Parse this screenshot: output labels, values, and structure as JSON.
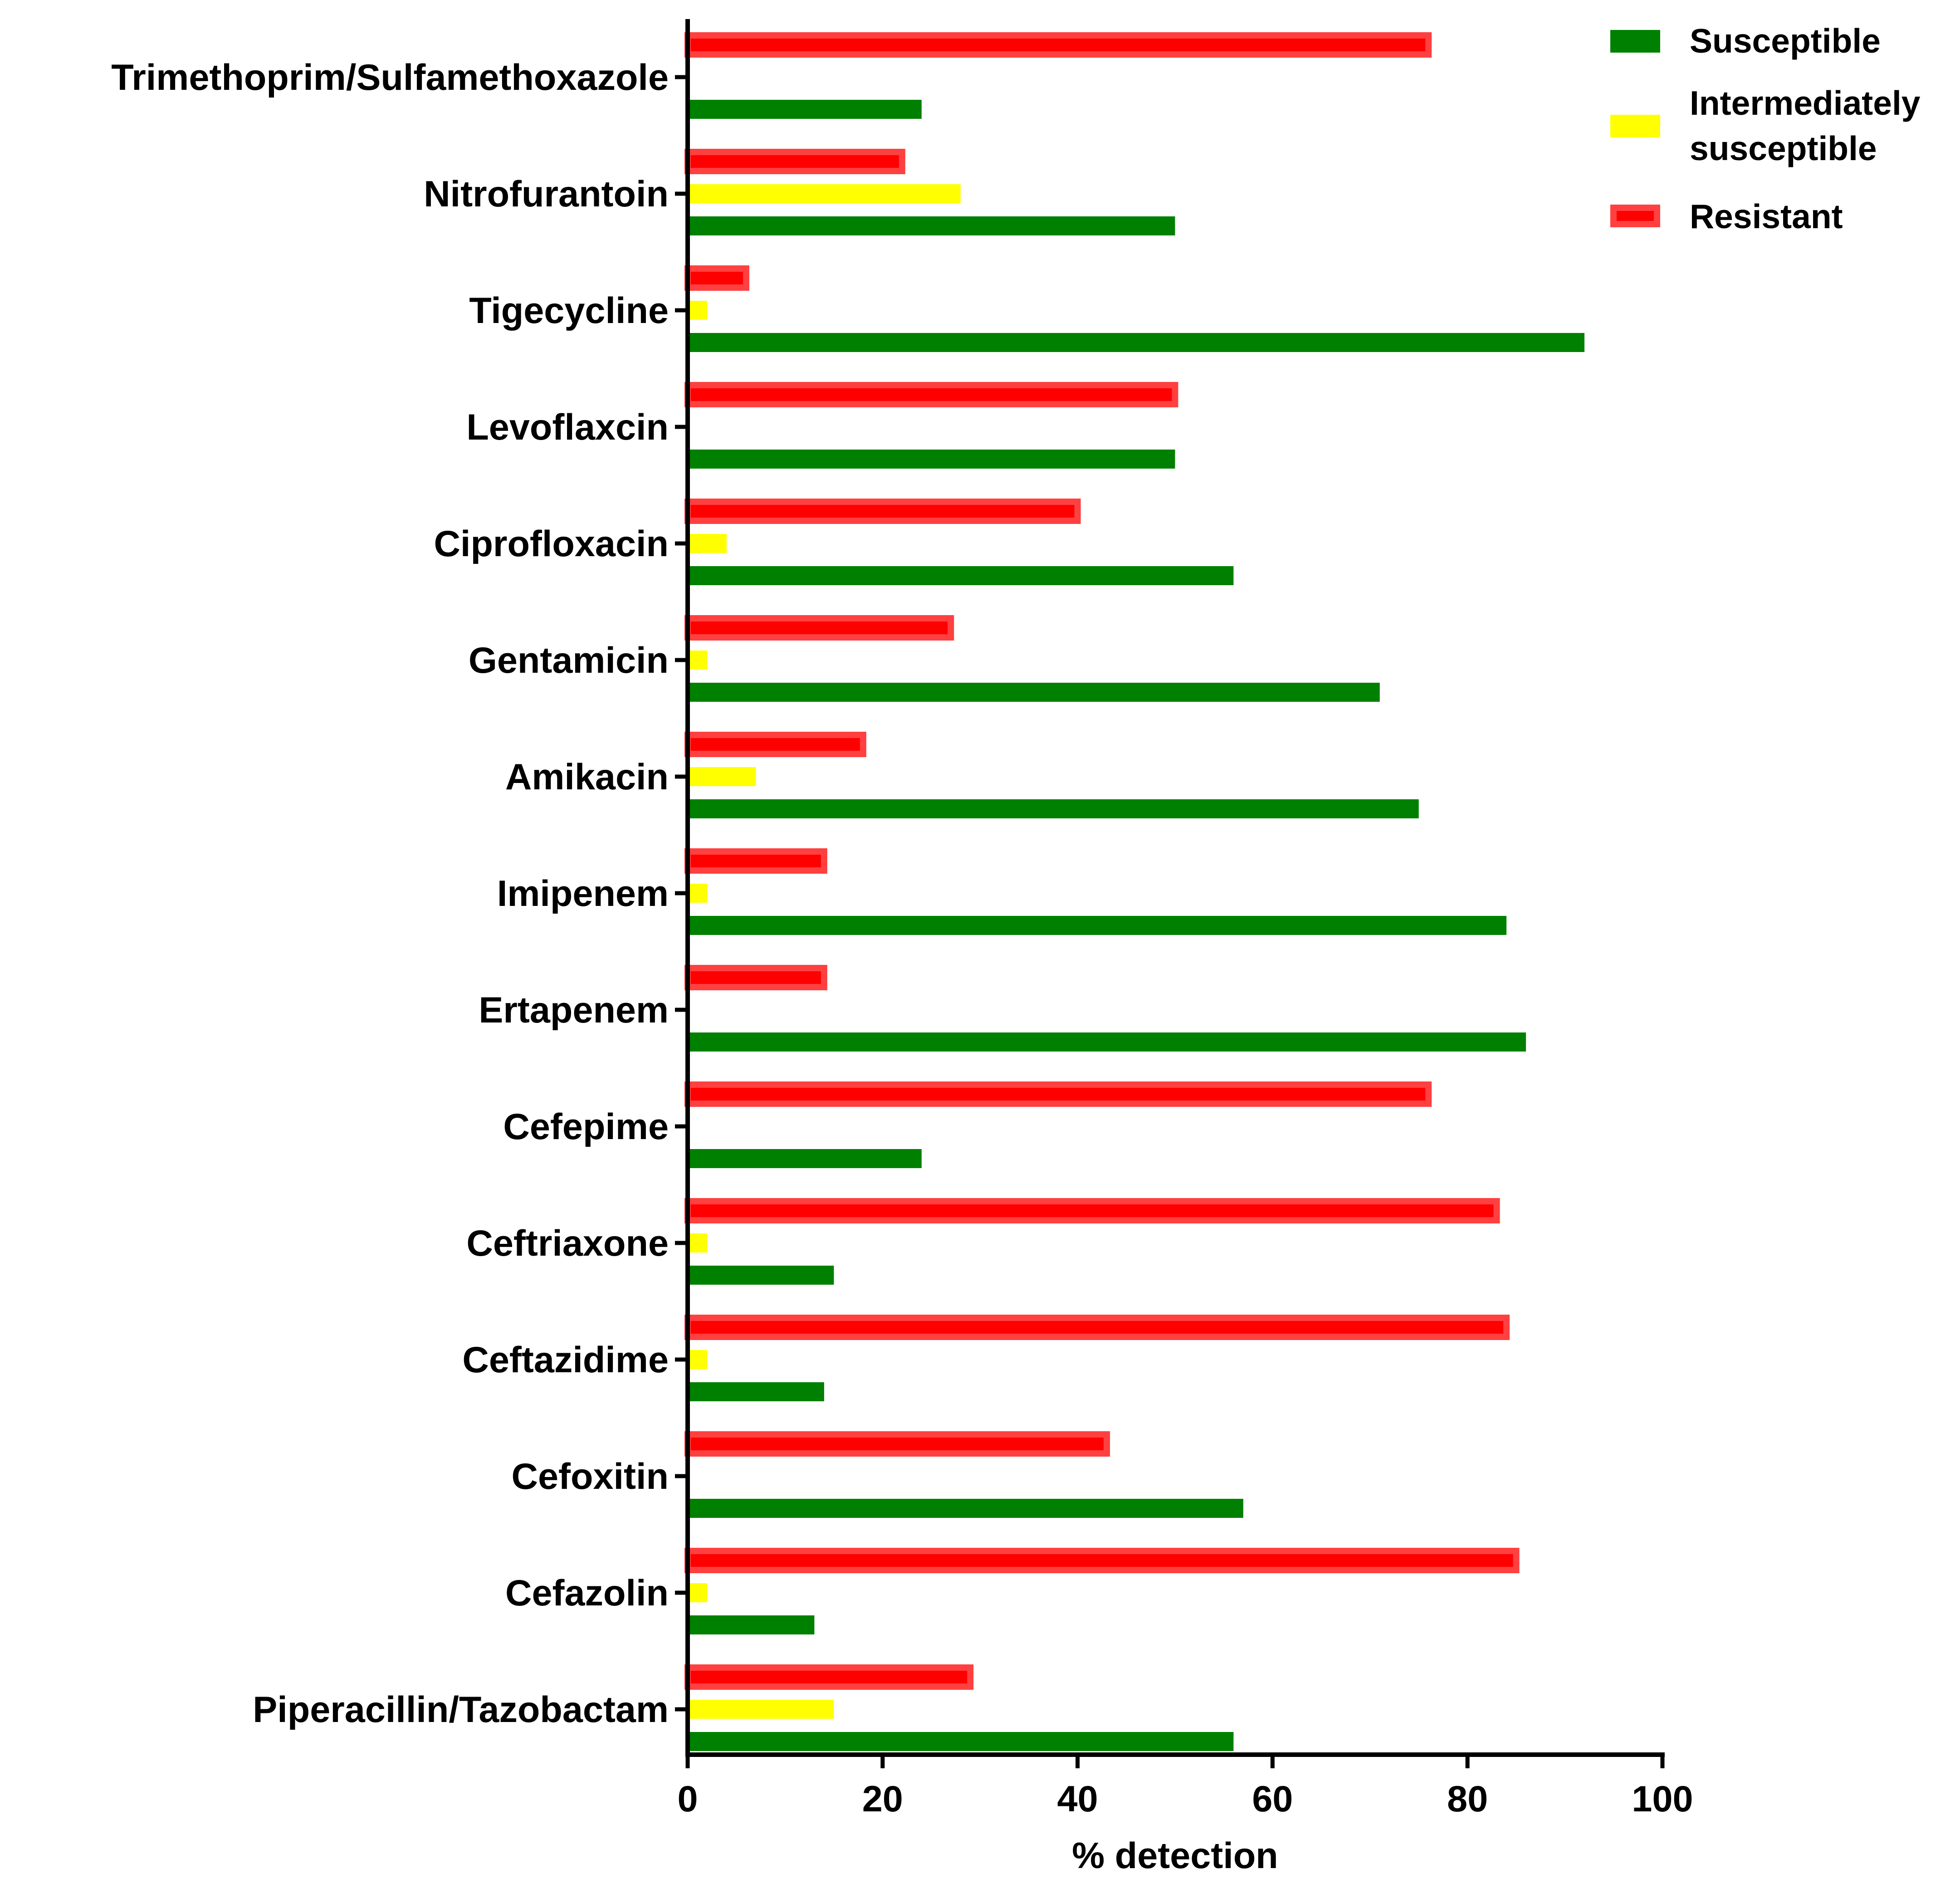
{
  "chart_data": {
    "type": "bar",
    "orientation": "horizontal",
    "title": "",
    "xlabel": "% detection",
    "ylabel": "",
    "xlim": [
      0,
      100
    ],
    "xticks": [
      0,
      20,
      40,
      60,
      80,
      100
    ],
    "grid": false,
    "legend_position": "top-right",
    "categories": [
      "Trimethoprim/Sulfamethoxazole",
      "Nitrofurantoin",
      "Tigecycline",
      "Levoflaxcin",
      "Ciprofloxacin",
      "Gentamicin",
      "Amikacin",
      "Imipenem",
      "Ertapenem",
      "Cefepime",
      "Ceftriaxone",
      "Ceftazidime",
      "Cefoxitin",
      "Cefazolin",
      "Piperacillin/Tazobactam"
    ],
    "series": [
      {
        "name": "Susceptible",
        "color": "#008000",
        "values": [
          24,
          50,
          92,
          50,
          56,
          71,
          75,
          84,
          86,
          24,
          15,
          14,
          57,
          13,
          56
        ]
      },
      {
        "name": "Intermediately susceptible",
        "color": "#ffff00",
        "values": [
          0,
          28,
          2,
          0,
          4,
          2,
          7,
          2,
          0,
          0,
          2,
          2,
          0,
          2,
          15
        ]
      },
      {
        "name": "Resistant",
        "color": "#ff0000",
        "edge_color": "#ff4040",
        "values": [
          76,
          22,
          6,
          50,
          40,
          27,
          18,
          14,
          14,
          76,
          83,
          84,
          43,
          85,
          29
        ]
      }
    ]
  }
}
